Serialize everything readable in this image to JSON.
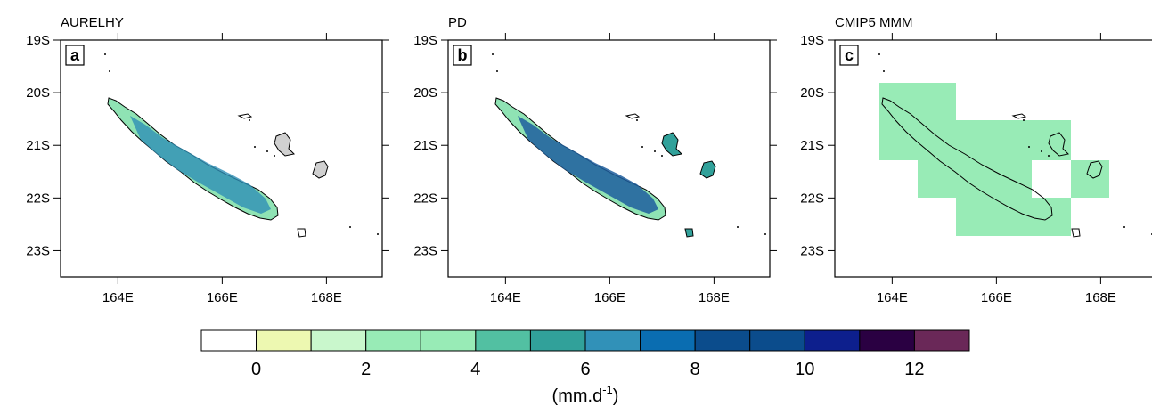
{
  "panels": [
    {
      "title": "AURELHY",
      "letter": "a"
    },
    {
      "title": "PD",
      "letter": "b"
    },
    {
      "title": "CMIP5 MMM",
      "letter": "c"
    }
  ],
  "map": {
    "xlim": [
      162.9,
      169.07
    ],
    "ylim": [
      -23.5,
      -19
    ],
    "xticks": [
      {
        "value": 164,
        "label": "164E"
      },
      {
        "value": 166,
        "label": "166E"
      },
      {
        "value": 168,
        "label": "168E"
      }
    ],
    "yticks": [
      {
        "value": -19,
        "label": "19S"
      },
      {
        "value": -20,
        "label": "20S"
      },
      {
        "value": -21,
        "label": "21S"
      },
      {
        "value": -22,
        "label": "22S"
      },
      {
        "value": -23,
        "label": "23S"
      }
    ]
  },
  "colorbar": {
    "range": [
      -1,
      13
    ],
    "ticks": [
      0,
      2,
      4,
      6,
      8,
      10,
      12
    ],
    "colors": [
      "#ffffff",
      "#edf8b1",
      "#c9f7cc",
      "#98ebb6",
      "#98ebb6",
      "#52c0a2",
      "#31a19a",
      "#3191b8",
      "#0a6db1",
      "#0b4c8c",
      "#0b4c8c",
      "#0d1f8d",
      "#2a0042",
      "#6a2858"
    ],
    "unit_parts": [
      "(mm.d",
      "-1",
      ")"
    ]
  }
}
